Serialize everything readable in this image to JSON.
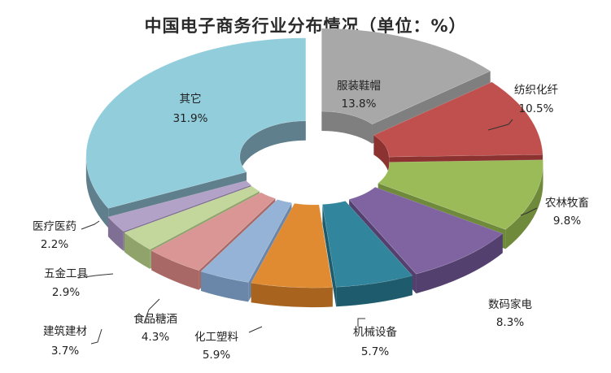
{
  "chart_data": {
    "type": "pie",
    "title": "中国电子商务行业分布情况（单位：%）",
    "unit": "%",
    "slices": [
      {
        "name": "服装鞋帽",
        "value": 13.8,
        "label": "13.8%",
        "color": "#a8a8a8",
        "side": "#7f7f7f"
      },
      {
        "name": "纺织化纤",
        "value": 10.5,
        "label": "10.5%",
        "color": "#c0504d",
        "side": "#8c3331"
      },
      {
        "name": "农林牧畜",
        "value": 9.8,
        "label": "9.8%",
        "color": "#9bbb59",
        "side": "#6e8a3a"
      },
      {
        "name": "数码家电",
        "value": 8.3,
        "label": "8.3%",
        "color": "#8064a2",
        "side": "#54406e"
      },
      {
        "name": "机械设备",
        "value": 5.7,
        "label": "5.7%",
        "color": "#31859c",
        "side": "#1e5c6d"
      },
      {
        "name": "化工塑料",
        "value": 5.9,
        "label": "5.9%",
        "color": "#e08b32",
        "side": "#a8641f"
      },
      {
        "name": "建筑建材",
        "value": 3.7,
        "label": "3.7%",
        "color": "#95b3d7",
        "side": "#6a86a8"
      },
      {
        "name": "食品糖酒",
        "value": 4.3,
        "label": "4.3%",
        "color": "#d99694",
        "side": "#a86866"
      },
      {
        "name": "五金工具",
        "value": 2.9,
        "label": "2.9%",
        "color": "#c3d69b",
        "side": "#8fa36a"
      },
      {
        "name": "医疗医药",
        "value": 2.2,
        "label": "2.2%",
        "color": "#b3a2c7",
        "side": "#7f6f94"
      },
      {
        "name": "其它",
        "value": 31.9,
        "label": "31.9%",
        "color": "#92cddc",
        "side": "#5f7f8c"
      }
    ]
  }
}
